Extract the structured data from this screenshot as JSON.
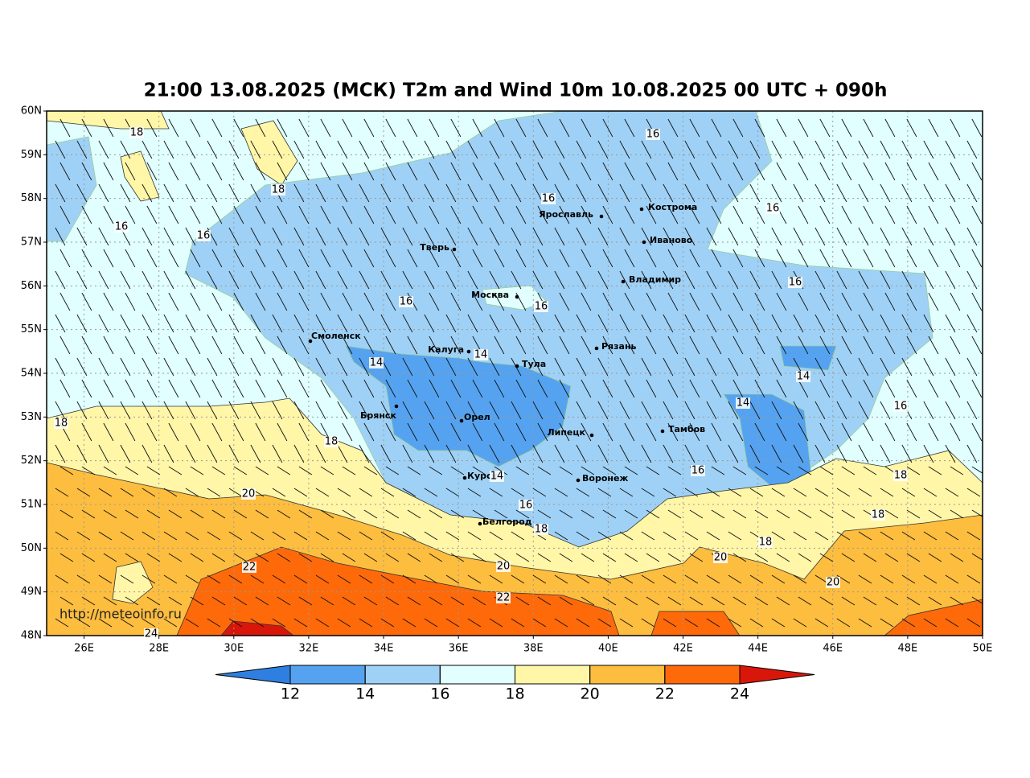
{
  "title": "21:00 13.08.2025 (МСК) T2m and Wind 10m 10.08.2025 00 UTC + 090h",
  "lat_labels": [
    "60N",
    "59N",
    "58N",
    "57N",
    "56N",
    "55N",
    "54N",
    "53N",
    "52N",
    "51N",
    "50N",
    "49N",
    "48N"
  ],
  "lon_labels": [
    "26E",
    "28E",
    "30E",
    "32E",
    "34E",
    "36E",
    "38E",
    "40E",
    "42E",
    "44E",
    "46E",
    "48E",
    "50E"
  ],
  "cities": [
    "Ярославль",
    "Кострома",
    "Иваново",
    "Тверь",
    "Владимир",
    "Москва",
    "Смоленск",
    "Рязань",
    "Калуга",
    "Тула",
    "Брянск",
    "Орел",
    "Липецк",
    "Тамбов",
    "Курск",
    "Воронеж",
    "Белгород"
  ],
  "contour_labels": [
    18,
    18,
    16,
    16,
    16,
    16,
    16,
    16,
    16,
    16,
    14,
    14,
    14,
    14,
    16,
    18,
    18,
    16,
    18,
    14,
    20,
    16,
    18,
    18,
    18,
    20,
    22,
    20,
    20,
    22,
    24
  ],
  "colorbar": {
    "ticks": [
      12,
      14,
      16,
      18,
      20,
      22,
      24
    ],
    "colors": [
      "#2f7fe0",
      "#55a3f0",
      "#9fd1f6",
      "#e0fffe",
      "#fff6a8",
      "#fdbd3f",
      "#fe6a0a",
      "#d8170a"
    ]
  },
  "watermark": "http://meteoinfo.ru"
}
